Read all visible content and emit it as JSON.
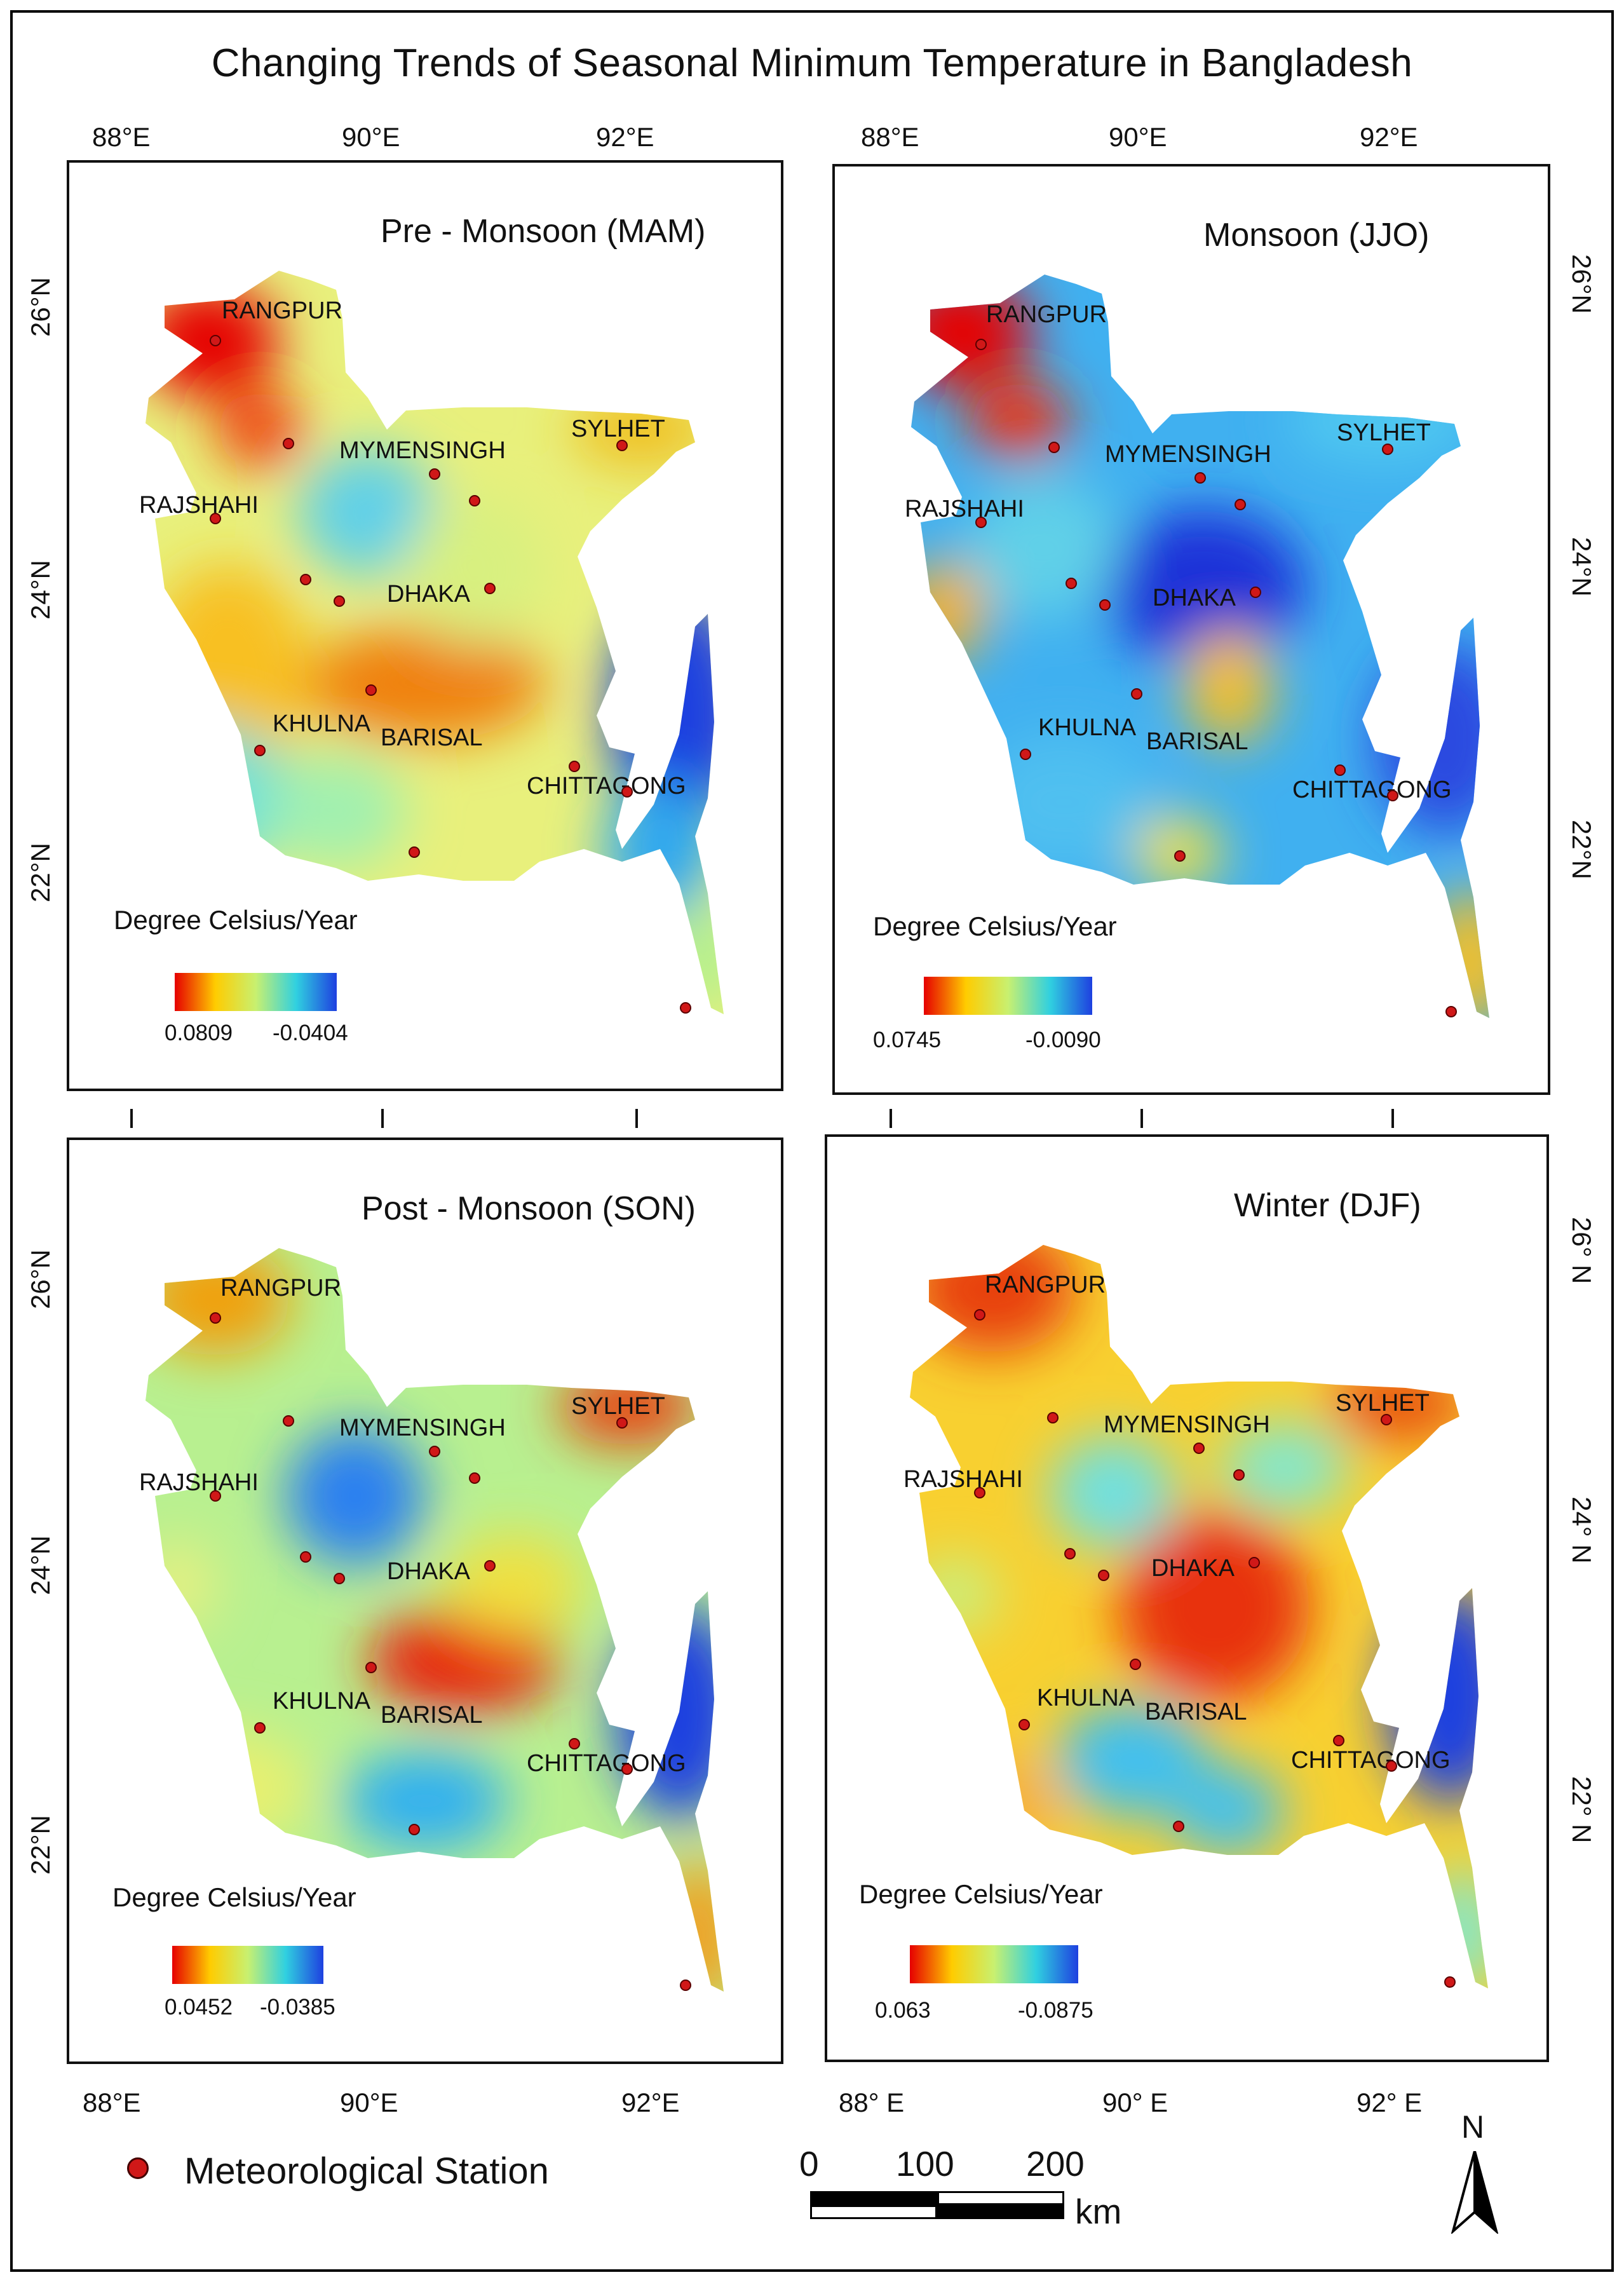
{
  "title": "Changing Trends of Seasonal Minimum Temperature in Bangladesh",
  "panels": [
    {
      "name": "Pre - Monsoon (MAM)",
      "legend_title": "Degree Celsius/Year",
      "legend_max": "0.0809",
      "legend_min": "-0.0404",
      "cities": {
        "rangpur": "RANGPUR",
        "mymensingh": "MYMENSINGH",
        "sylhet": "SYLHET",
        "rajshahi": "RAJSHAHI",
        "dhaka": "DHAKA",
        "khulna": "KHULNA",
        "barisal": "BARISAL",
        "chittagong": "CHITTAGONG"
      }
    },
    {
      "name": "Monsoon (JJO)",
      "legend_title": "Degree Celsius/Year",
      "legend_max": "0.0745",
      "legend_min": "-0.0090",
      "cities": {
        "rangpur": "RANGPUR",
        "mymensingh": "MYMENSINGH",
        "sylhet": "SYLHET",
        "rajshahi": "RAJSHAHI",
        "dhaka": "DHAKA",
        "khulna": "KHULNA",
        "barisal": "BARISAL",
        "chittagong": "CHITTAGONG"
      }
    },
    {
      "name": "Post - Monsoon (SON)",
      "legend_title": "Degree Celsius/Year",
      "legend_max": "0.0452",
      "legend_min": "-0.0385",
      "cities": {
        "rangpur": "RANGPUR",
        "mymensingh": "MYMENSINGH",
        "sylhet": "SYLHET",
        "rajshahi": "RAJSHAHI",
        "dhaka": "DHAKA",
        "khulna": "KHULNA",
        "barisal": "BARISAL",
        "chittagong": "CHITTAGONG"
      }
    },
    {
      "name": "Winter (DJF)",
      "legend_title": "Degree Celsius/Year",
      "legend_max": "0.063",
      "legend_min": "-0.0875",
      "cities": {
        "rangpur": "RANGPUR",
        "mymensingh": "MYMENSINGH",
        "sylhet": "SYLHET",
        "rajshahi": "RAJSHAHI",
        "dhaka": "DHAKA",
        "khulna": "KHULNA",
        "barisal": "BARISAL",
        "chittagong": "CHITTAGONG"
      }
    }
  ],
  "axes": {
    "top_left": [
      "88°E",
      "90°E",
      "92°E"
    ],
    "top_right": [
      "88°E",
      "90°E",
      "92°E"
    ],
    "bottom_left": [
      "88°E",
      "90°E",
      "92°E"
    ],
    "bottom_right": [
      "88° E",
      "90° E",
      "92° E"
    ],
    "left_top": [
      "26°N",
      "24°N",
      "22°N"
    ],
    "left_bottom": [
      "26°N",
      "24°N",
      "22°N"
    ],
    "right_top": [
      "26°N",
      "24°N",
      "22°N"
    ],
    "right_bottom": [
      "26° N",
      "24° N",
      "22° N"
    ]
  },
  "legend": {
    "station": "Meteorological Station"
  },
  "scale": {
    "ticks": [
      "0",
      "100",
      "200"
    ],
    "unit": "km"
  },
  "north": "N",
  "colors": {
    "high": "#e80000",
    "low": "#1b3fe0",
    "station": "#d01818"
  }
}
